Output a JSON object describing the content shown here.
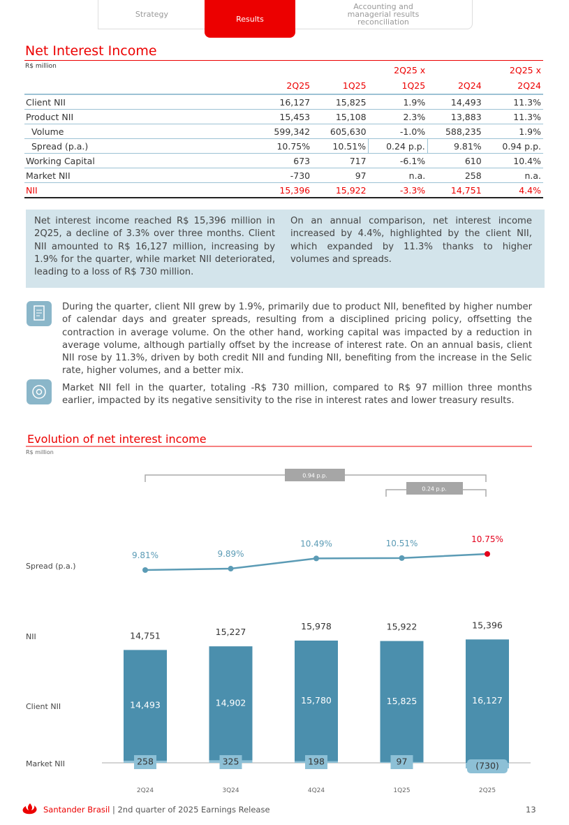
{
  "tabs": [
    "Strategy",
    "Results",
    "Accounting and managerial results reconciliation"
  ],
  "section_title": "Net Interest Income",
  "table": {
    "unit": "R$ million",
    "columns": [
      "2Q25",
      "1Q25",
      "2Q25 x 1Q25",
      "2Q24",
      "2Q25 x 2Q24"
    ],
    "rows": [
      [
        "Client NII",
        "16,127",
        "15,825",
        "1.9%",
        "14,493",
        "11.3%"
      ],
      [
        "Product NII",
        "15,453",
        "15,108",
        "2.3%",
        "13,883",
        "11.3%"
      ],
      [
        "Volume",
        "599,342",
        "605,630",
        "-1.0%",
        "588,235",
        "1.9%"
      ],
      [
        "Spread (p.a.)",
        "10.75%",
        "10.51%",
        "0.24 p.p.",
        "9.81%",
        "0.94 p.p."
      ],
      [
        "Working Capital",
        "673",
        "717",
        "-6.1%",
        "610",
        "10.4%"
      ],
      [
        "Market NII",
        "-730",
        "97",
        "n.a.",
        "258",
        "n.a."
      ],
      [
        "NII",
        "15,396",
        "15,922",
        "-3.3%",
        "14,751",
        "4.4%"
      ]
    ]
  },
  "summary": [
    "Net interest income reached R$ 15,396 million in 2Q25, a decline of 3.3% over three months. Client NII amounted to R$ 16,127 million, increasing by 1.9% for the quarter, while market NII deteriorated, leading to a loss of R$ 730 million.",
    "On an annual comparison, net interest income increased by 4.4%, highlighted by the client NII, which expanded by 11.3% thanks to higher volumes and spreads."
  ],
  "bullets": [
    "During the quarter, client NII grew by 1.9%, primarily due to product NII, benefited by higher number of calendar days and greater spreads, resulting from a disciplined pricing policy, offsetting the contraction in average volume. On the other hand, working capital was impacted by a reduction in average volume, although partially offset by the increase of interest rate. On an annual basis, client NII rose by 11.3%, driven by both credit NII and funding NII, benefiting from the increase in the Selic rate, higher volumes, and a better mix.",
    "Market NII fell in the quarter, totaling -R$ 730 million, compared to R$ 97 million three months earlier, impacted by its negative sensitivity to the rise in interest rates and lower treasury results."
  ],
  "chart_data": {
    "type": "bar",
    "title": "Evolution of net interest income",
    "subtitle": "R$ million",
    "categories": [
      "2Q24",
      "3Q24",
      "4Q24",
      "1Q25",
      "2Q25"
    ],
    "series": [
      {
        "name": "Spread (p.a.)",
        "color": "#5b9bb5",
        "values": [
          9.81,
          9.89,
          10.49,
          10.51,
          10.75
        ],
        "value_labels": [
          "9.81%",
          "9.89%",
          "10.49%",
          "10.51%",
          "10.75%"
        ]
      },
      {
        "name": "NII",
        "values": [
          14751,
          15227,
          15978,
          15922,
          15396
        ],
        "value_labels": [
          "14,751",
          "15,227",
          "15,978",
          "15,922",
          "15,396"
        ]
      },
      {
        "name": "Client NII",
        "color": "#4b8fad",
        "values": [
          14493,
          14902,
          15780,
          15825,
          16127
        ],
        "value_labels": [
          "14,493",
          "14,902",
          "15,780",
          "15,825",
          "16,127"
        ]
      },
      {
        "name": "Market NII",
        "color": "#8dc0d6",
        "values": [
          258,
          325,
          198,
          97,
          -730
        ],
        "value_labels": [
          "258",
          "325",
          "198",
          "97",
          "(730)"
        ]
      }
    ],
    "annotations": [
      "0.94 p.p.",
      "0.24 p.p."
    ]
  },
  "footer": {
    "brand": "Santander Brasil",
    "text": "| 2nd quarter of 2025 Earnings Release",
    "page": "13"
  }
}
